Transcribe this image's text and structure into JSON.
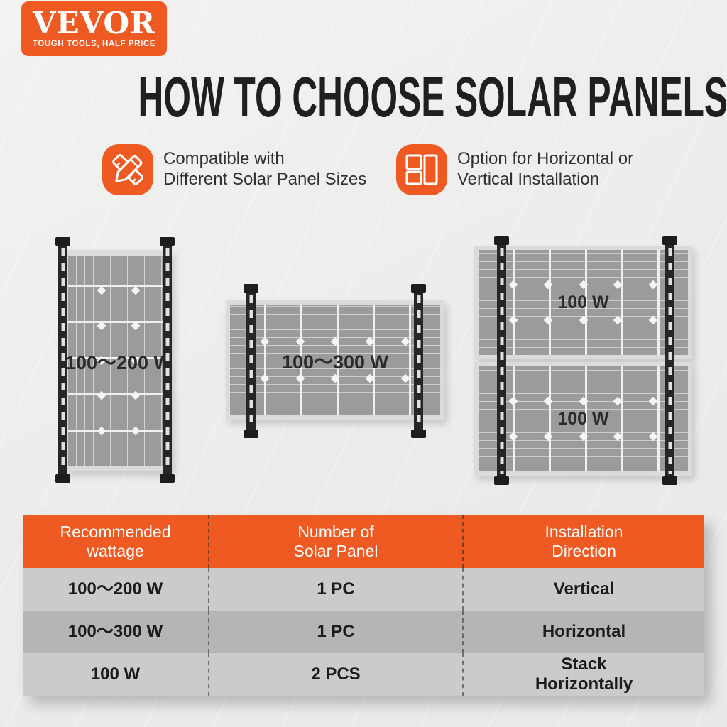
{
  "logo": {
    "brand": "VEVOR",
    "tagline": "TOUGH TOOLS, HALF PRICE"
  },
  "title": "HOW TO CHOOSE SOLAR PANELS",
  "features": [
    {
      "icon": "ruler-pencil-icon",
      "line1": "Compatible with",
      "line2": "Different Solar Panel Sizes"
    },
    {
      "icon": "layout-split-icon",
      "line1": "Option for Horizontal or",
      "line2": "Vertical Installation"
    }
  ],
  "diagrams": [
    {
      "orientation": "vertical",
      "label": "100～200 W"
    },
    {
      "orientation": "horizontal",
      "label": "100～300 W"
    },
    {
      "orientation": "stack-horizontal",
      "label_top": "100 W",
      "label_bottom": "100 W"
    }
  ],
  "table": {
    "headers": [
      {
        "line1": "Recommended",
        "line2": "wattage"
      },
      {
        "line1": "Number of",
        "line2": "Solar Panel"
      },
      {
        "line1": "Installation",
        "line2": "Direction"
      }
    ],
    "rows": [
      {
        "wattage": "100～200 W",
        "quantity": "1 PC",
        "direction_line1": "Vertical",
        "direction_line2": ""
      },
      {
        "wattage": "100～300 W",
        "quantity": "1 PC",
        "direction_line1": "Horizontal",
        "direction_line2": ""
      },
      {
        "wattage": "100 W",
        "quantity": "2 PCS",
        "direction_line1": "Stack",
        "direction_line2": "Horizontally"
      }
    ]
  },
  "colors": {
    "accent_orange": "#EF5A22",
    "rail_black": "#262626",
    "panel_gray": "#9B9B9B",
    "row_light": "#CBCBCB",
    "row_dark": "#B5B5B5",
    "header_text": "#FFFFFF",
    "body_text": "#1C1C1C"
  }
}
